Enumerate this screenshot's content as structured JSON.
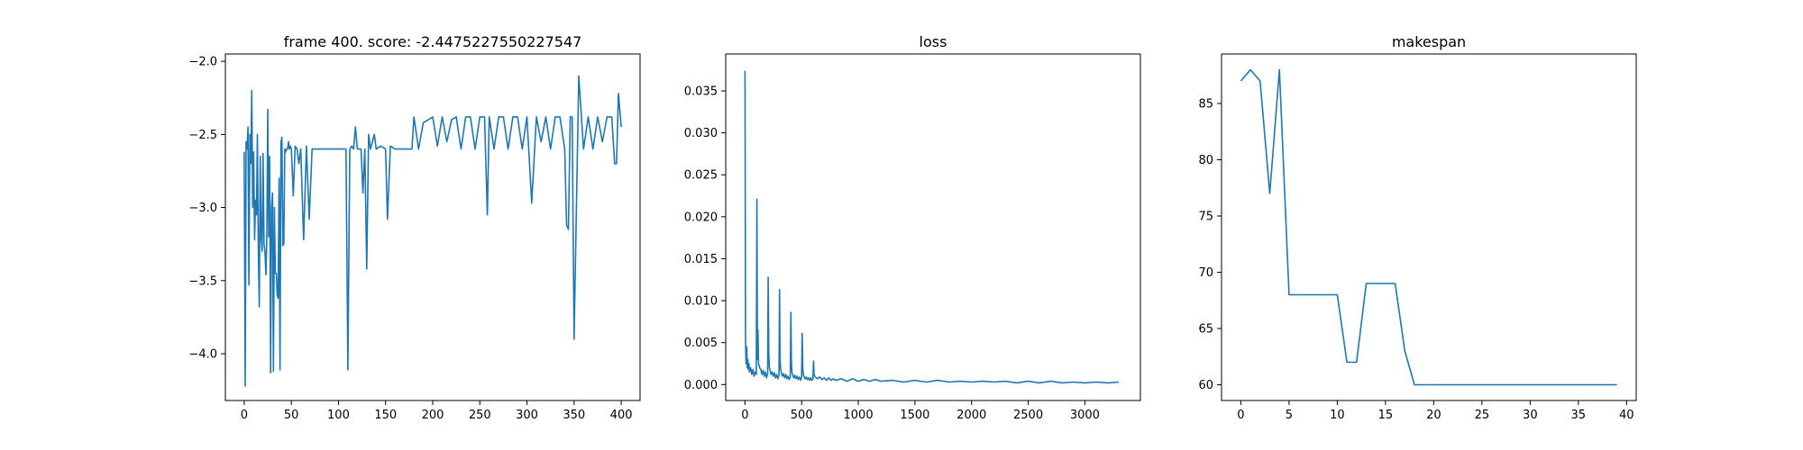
{
  "chart_data": [
    {
      "type": "line",
      "title": "frame 400. score: -2.4475227550227547",
      "xlabel": "",
      "ylabel": "",
      "xlim": [
        -20,
        420
      ],
      "ylim": [
        -4.32,
        -1.95
      ],
      "xticks": [
        0,
        50,
        100,
        150,
        200,
        250,
        300,
        350,
        400
      ],
      "yticks": [
        -4.0,
        -3.5,
        -3.0,
        -2.5,
        -2.0
      ],
      "xtick_labels": [
        "0",
        "50",
        "100",
        "150",
        "200",
        "250",
        "300",
        "350",
        "400"
      ],
      "ytick_labels": [
        "−4.0",
        "−3.5",
        "−3.0",
        "−2.5",
        "−2.0"
      ],
      "grid": false,
      "series": [
        {
          "color": "#1f77b4",
          "x": [
            0,
            1,
            2,
            3,
            4,
            5,
            6,
            7,
            8,
            9,
            10,
            11,
            12,
            13,
            14,
            15,
            16,
            17,
            18,
            19,
            20,
            21,
            22,
            23,
            24,
            25,
            26,
            27,
            28,
            29,
            30,
            31,
            32,
            33,
            34,
            35,
            36,
            37,
            38,
            39,
            40,
            41,
            42,
            43,
            44,
            45,
            46,
            47,
            48,
            49,
            50,
            52,
            54,
            56,
            58,
            60,
            63,
            66,
            69,
            72,
            75,
            78,
            81,
            84,
            86,
            88,
            90,
            92,
            94,
            96,
            98,
            100,
            102,
            104,
            106,
            108,
            110,
            112,
            114,
            116,
            118,
            120,
            122,
            124,
            126,
            128,
            130,
            132,
            134,
            136,
            138,
            140,
            145,
            150,
            152,
            155,
            160,
            165,
            170,
            175,
            178,
            180,
            185,
            190,
            200,
            205,
            210,
            215,
            220,
            225,
            230,
            235,
            240,
            245,
            250,
            255,
            258,
            260,
            265,
            270,
            275,
            280,
            285,
            290,
            295,
            300,
            305,
            310,
            315,
            320,
            325,
            330,
            335,
            340,
            342,
            344,
            346,
            348,
            350,
            355,
            360,
            365,
            370,
            375,
            380,
            385,
            390,
            393,
            395,
            397,
            400
          ],
          "y": [
            -2.62,
            -4.22,
            -2.55,
            -2.6,
            -2.45,
            -3.53,
            -2.5,
            -2.7,
            -2.2,
            -3.0,
            -2.62,
            -3.22,
            -2.95,
            -3.05,
            -2.5,
            -3.3,
            -3.68,
            -2.65,
            -3.2,
            -3.3,
            -2.63,
            -3.25,
            -3.3,
            -3.46,
            -3.2,
            -2.33,
            -3.2,
            -2.65,
            -4.13,
            -3.0,
            -2.9,
            -4.12,
            -3.0,
            -3.45,
            -3.45,
            -3.6,
            -3.62,
            -2.8,
            -4.11,
            -2.55,
            -2.52,
            -3.26,
            -3.25,
            -2.6,
            -2.62,
            -2.6,
            -2.6,
            -2.55,
            -2.6,
            -2.58,
            -2.6,
            -2.92,
            -2.58,
            -2.6,
            -2.7,
            -2.6,
            -3.22,
            -2.58,
            -3.08,
            -2.6,
            -2.6,
            -2.6,
            -2.6,
            -2.6,
            -2.6,
            -2.6,
            -2.6,
            -2.6,
            -2.6,
            -2.6,
            -2.6,
            -2.6,
            -2.6,
            -2.6,
            -2.6,
            -2.6,
            -4.11,
            -2.6,
            -2.58,
            -2.6,
            -2.45,
            -2.6,
            -2.6,
            -2.6,
            -2.9,
            -2.6,
            -3.42,
            -2.5,
            -2.6,
            -2.55,
            -2.5,
            -2.6,
            -2.58,
            -2.6,
            -3.08,
            -2.58,
            -2.6,
            -2.6,
            -2.6,
            -2.6,
            -2.6,
            -2.38,
            -2.6,
            -2.42,
            -2.38,
            -2.58,
            -2.38,
            -2.55,
            -2.4,
            -2.38,
            -2.6,
            -2.38,
            -2.38,
            -2.6,
            -2.38,
            -2.38,
            -3.05,
            -2.38,
            -2.6,
            -2.38,
            -2.38,
            -2.6,
            -2.38,
            -2.38,
            -2.6,
            -2.38,
            -2.97,
            -2.38,
            -2.55,
            -2.38,
            -2.6,
            -2.38,
            -2.38,
            -2.6,
            -3.12,
            -3.15,
            -2.38,
            -2.38,
            -3.9,
            -2.1,
            -2.6,
            -2.38,
            -2.6,
            -2.38,
            -2.55,
            -2.38,
            -2.38,
            -2.7,
            -2.7,
            -2.22,
            -2.45
          ]
        }
      ]
    },
    {
      "type": "line",
      "title": "loss",
      "xlabel": "",
      "ylabel": "",
      "xlim": [
        -170,
        3490
      ],
      "ylim": [
        -0.0019,
        0.0394
      ],
      "xticks": [
        0,
        500,
        1000,
        1500,
        2000,
        2500,
        3000
      ],
      "yticks": [
        0.0,
        0.005,
        0.01,
        0.015,
        0.02,
        0.025,
        0.03,
        0.035
      ],
      "xtick_labels": [
        "0",
        "500",
        "1000",
        "1500",
        "2000",
        "2500",
        "3000"
      ],
      "ytick_labels": [
        "0.000",
        "0.005",
        "0.010",
        "0.015",
        "0.020",
        "0.025",
        "0.030",
        "0.035"
      ],
      "grid": false,
      "series": [
        {
          "color": "#1f77b4",
          "x": [
            0,
            5,
            10,
            15,
            20,
            25,
            30,
            35,
            40,
            50,
            60,
            70,
            80,
            90,
            100,
            105,
            110,
            115,
            120,
            130,
            140,
            150,
            160,
            170,
            180,
            190,
            200,
            205,
            210,
            215,
            220,
            230,
            240,
            250,
            260,
            270,
            280,
            290,
            300,
            305,
            310,
            315,
            320,
            330,
            340,
            350,
            360,
            370,
            380,
            390,
            400,
            405,
            410,
            415,
            420,
            430,
            440,
            450,
            460,
            470,
            480,
            490,
            500,
            505,
            510,
            515,
            520,
            530,
            540,
            550,
            560,
            570,
            580,
            590,
            600,
            605,
            610,
            620,
            640,
            660,
            680,
            700,
            720,
            740,
            760,
            780,
            800,
            850,
            900,
            950,
            1000,
            1050,
            1100,
            1150,
            1200,
            1300,
            1400,
            1500,
            1600,
            1700,
            1800,
            1900,
            2000,
            2100,
            2200,
            2300,
            2400,
            2500,
            2600,
            2700,
            2800,
            2900,
            3000,
            3100,
            3200,
            3300
          ],
          "y": [
            0.0374,
            0.005,
            0.0025,
            0.0045,
            0.002,
            0.003,
            0.0018,
            0.0025,
            0.0015,
            0.002,
            0.0012,
            0.0018,
            0.001,
            0.0015,
            0.0012,
            0.0221,
            0.003,
            0.0065,
            0.0025,
            0.002,
            0.0018,
            0.0012,
            0.0017,
            0.001,
            0.0015,
            0.0008,
            0.0013,
            0.0128,
            0.0035,
            0.002,
            0.0018,
            0.0012,
            0.0015,
            0.001,
            0.0014,
            0.0008,
            0.0012,
            0.0007,
            0.0011,
            0.0113,
            0.003,
            0.0018,
            0.0015,
            0.001,
            0.0013,
            0.0008,
            0.0012,
            0.0007,
            0.001,
            0.0006,
            0.0009,
            0.0086,
            0.0025,
            0.0014,
            0.0012,
            0.0008,
            0.0011,
            0.0007,
            0.001,
            0.0006,
            0.0009,
            0.0005,
            0.0009,
            0.0061,
            0.002,
            0.0012,
            0.001,
            0.0007,
            0.0009,
            0.0006,
            0.0008,
            0.0005,
            0.0008,
            0.0005,
            0.0007,
            0.0028,
            0.0012,
            0.0009,
            0.0007,
            0.0009,
            0.0006,
            0.0008,
            0.0005,
            0.0008,
            0.0005,
            0.0007,
            0.0005,
            0.0007,
            0.0004,
            0.0007,
            0.0004,
            0.0006,
            0.0004,
            0.0006,
            0.0004,
            0.0005,
            0.0003,
            0.0005,
            0.0003,
            0.0005,
            0.0003,
            0.0004,
            0.0003,
            0.0004,
            0.0003,
            0.0004,
            0.0002,
            0.0004,
            0.0002,
            0.0004,
            0.0002,
            0.0003,
            0.0002,
            0.0003,
            0.0002,
            0.0003
          ]
        }
      ]
    },
    {
      "type": "line",
      "title": "makespan",
      "xlabel": "",
      "ylabel": "",
      "xlim": [
        -2,
        41
      ],
      "ylim": [
        58.6,
        89.4
      ],
      "xticks": [
        0,
        5,
        10,
        15,
        20,
        25,
        30,
        35,
        40
      ],
      "yticks": [
        60,
        65,
        70,
        75,
        80,
        85
      ],
      "xtick_labels": [
        "0",
        "5",
        "10",
        "15",
        "20",
        "25",
        "30",
        "35",
        "40"
      ],
      "ytick_labels": [
        "60",
        "65",
        "70",
        "75",
        "80",
        "85"
      ],
      "grid": false,
      "series": [
        {
          "color": "#1f77b4",
          "x": [
            0,
            1,
            2,
            3,
            4,
            5,
            6,
            7,
            8,
            9,
            10,
            11,
            12,
            13,
            14,
            15,
            16,
            17,
            18,
            19,
            20,
            21,
            22,
            23,
            24,
            25,
            26,
            27,
            28,
            29,
            30,
            31,
            32,
            33,
            34,
            35,
            36,
            37,
            38,
            39
          ],
          "y": [
            87,
            88,
            87,
            77,
            88,
            68,
            68,
            68,
            68,
            68,
            68,
            62,
            62,
            69,
            69,
            69,
            69,
            63,
            60,
            60,
            60,
            60,
            60,
            60,
            60,
            60,
            60,
            60,
            60,
            60,
            60,
            60,
            60,
            60,
            60,
            60,
            60,
            60,
            60,
            60
          ]
        }
      ]
    }
  ]
}
